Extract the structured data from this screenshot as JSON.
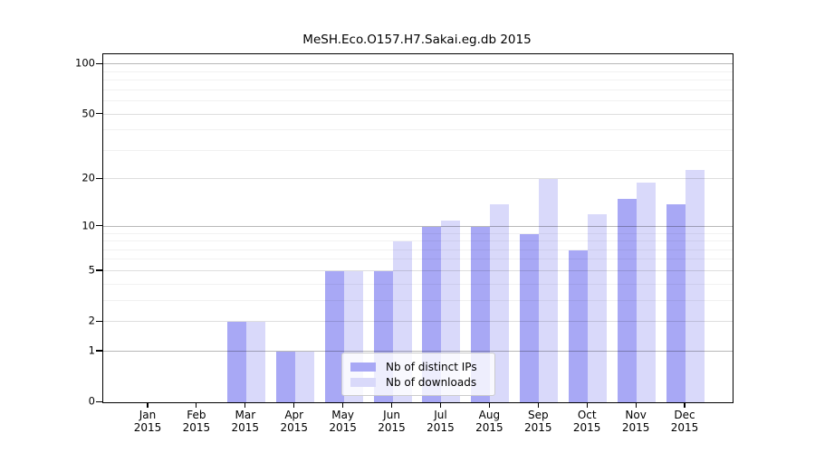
{
  "figure": {
    "title": "MeSH.Eco.O157.H7.Sakai.eg.db 2015"
  },
  "chart_data": {
    "type": "bar",
    "title": "MeSH.Eco.O157.H7.Sakai.eg.db 2015",
    "categories": [
      {
        "month": "Jan",
        "year": "2015"
      },
      {
        "month": "Feb",
        "year": "2015"
      },
      {
        "month": "Mar",
        "year": "2015"
      },
      {
        "month": "Apr",
        "year": "2015"
      },
      {
        "month": "May",
        "year": "2015"
      },
      {
        "month": "Jun",
        "year": "2015"
      },
      {
        "month": "Jul",
        "year": "2015"
      },
      {
        "month": "Aug",
        "year": "2015"
      },
      {
        "month": "Sep",
        "year": "2015"
      },
      {
        "month": "Oct",
        "year": "2015"
      },
      {
        "month": "Nov",
        "year": "2015"
      },
      {
        "month": "Dec",
        "year": "2015"
      }
    ],
    "series": [
      {
        "name": "Nb of distinct IPs",
        "color": "#a8a8f5",
        "values": [
          0,
          0,
          2,
          1,
          5,
          5,
          10,
          10,
          9,
          7,
          15,
          14
        ]
      },
      {
        "name": "Nb of downloads",
        "color": "#d9d9fa",
        "values": [
          0,
          0,
          2,
          1,
          5,
          8,
          11,
          14,
          20,
          12,
          19,
          23
        ]
      }
    ],
    "y_axis": {
      "scale": "log1p",
      "ticks": [
        0,
        1,
        2,
        5,
        10,
        20,
        50,
        100
      ],
      "minor_ticks": [
        3,
        4,
        6,
        7,
        8,
        9,
        30,
        40,
        60,
        70,
        80,
        90
      ],
      "max": 115
    },
    "legend": {
      "position": "lower-center",
      "entries": [
        "Nb of distinct IPs",
        "Nb of downloads"
      ]
    },
    "grid": true
  }
}
